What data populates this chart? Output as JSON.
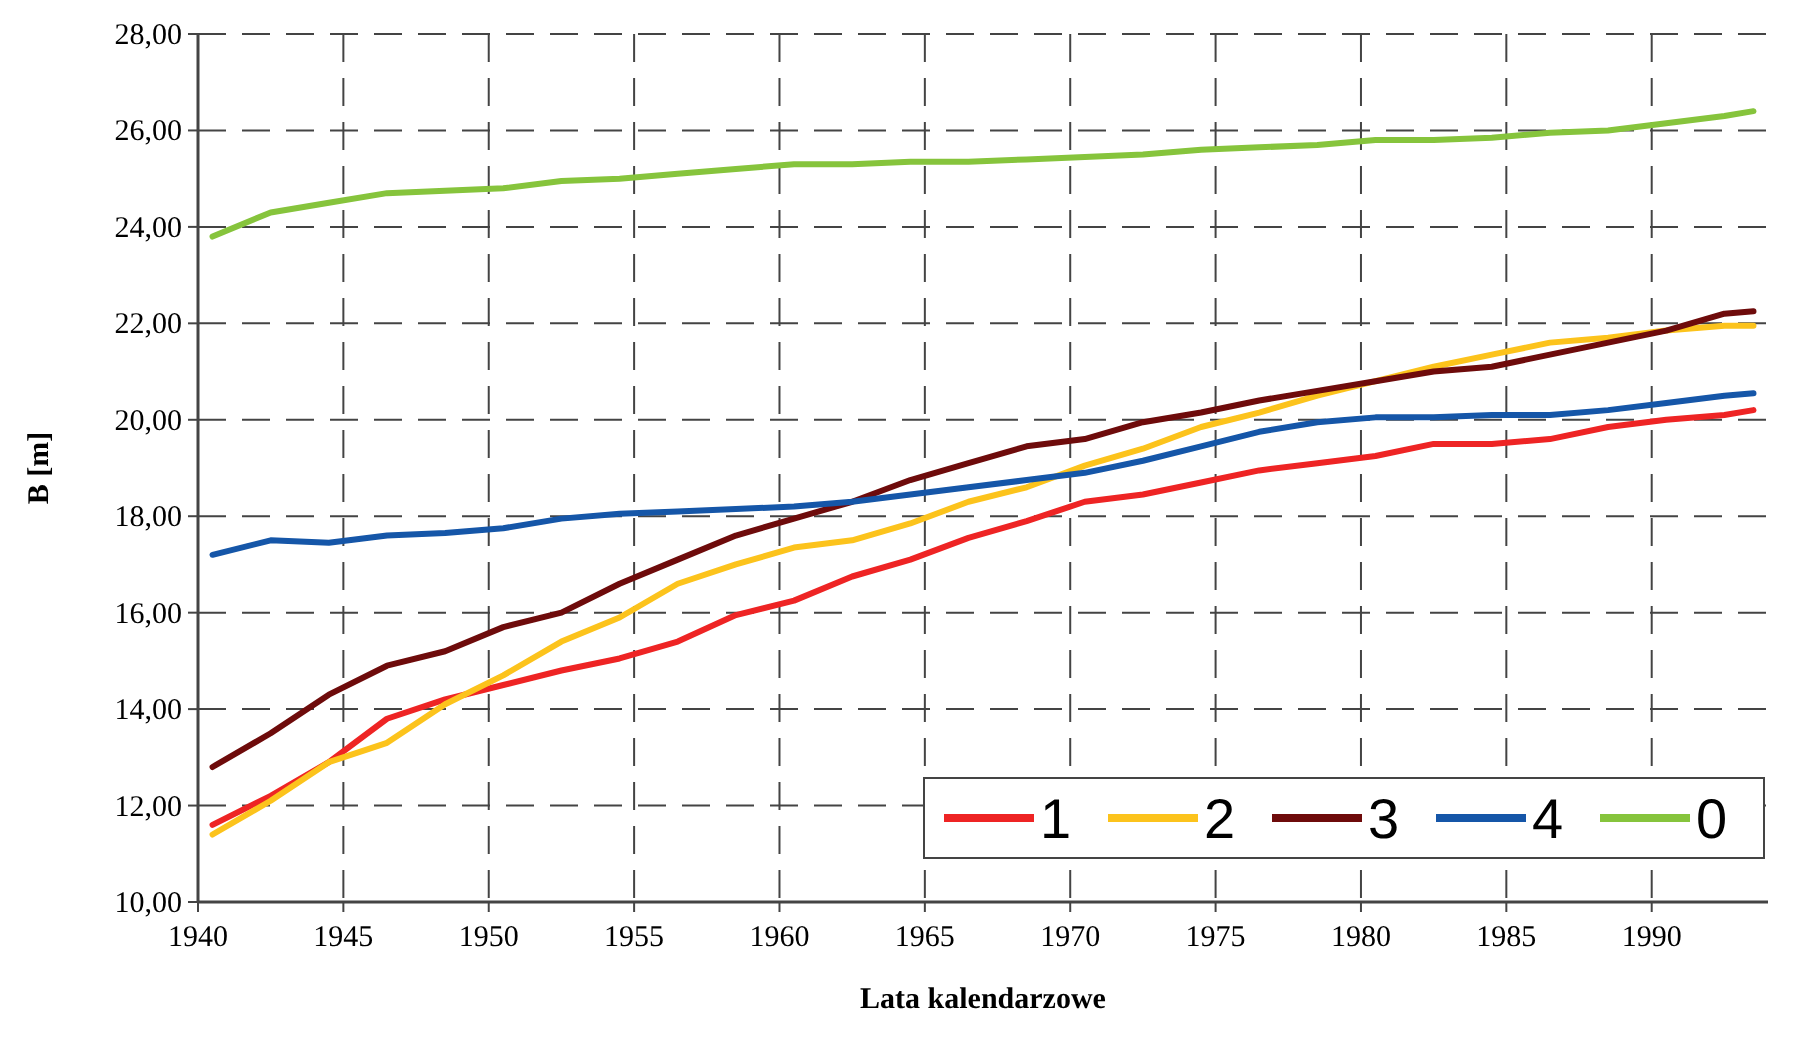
{
  "chart_data": {
    "type": "line",
    "xlabel": "Lata kalendarzowe",
    "ylabel": "B [m]",
    "x": [
      1940.5,
      1942.5,
      1944.5,
      1946.5,
      1948.5,
      1950.5,
      1952.5,
      1954.5,
      1956.5,
      1958.5,
      1960.5,
      1962.5,
      1964.5,
      1966.5,
      1968.5,
      1970.5,
      1972.5,
      1974.5,
      1976.5,
      1978.5,
      1980.5,
      1982.5,
      1984.5,
      1986.5,
      1988.5,
      1990.5,
      1992.5,
      1993.5
    ],
    "series": [
      {
        "name": "1",
        "color": "#ee2424",
        "values": [
          11.6,
          12.2,
          12.9,
          13.8,
          14.2,
          14.5,
          14.8,
          15.05,
          15.4,
          15.95,
          16.25,
          16.75,
          17.1,
          17.55,
          17.9,
          18.3,
          18.45,
          18.7,
          18.95,
          19.1,
          19.25,
          19.5,
          19.5,
          19.6,
          19.85,
          20.0,
          20.1,
          20.2
        ]
      },
      {
        "name": "2",
        "color": "#fcc31c",
        "values": [
          11.4,
          12.1,
          12.9,
          13.3,
          14.1,
          14.7,
          15.4,
          15.9,
          16.6,
          17.0,
          17.35,
          17.5,
          17.85,
          18.3,
          18.6,
          19.05,
          19.4,
          19.85,
          20.15,
          20.5,
          20.8,
          21.1,
          21.35,
          21.6,
          21.7,
          21.85,
          21.95,
          21.95
        ]
      },
      {
        "name": "3",
        "color": "#6e0b0b",
        "values": [
          12.8,
          13.5,
          14.3,
          14.9,
          15.2,
          15.7,
          16.0,
          16.6,
          17.1,
          17.6,
          17.95,
          18.3,
          18.75,
          19.1,
          19.45,
          19.6,
          19.95,
          20.15,
          20.4,
          20.6,
          20.8,
          21.0,
          21.1,
          21.35,
          21.6,
          21.85,
          22.2,
          22.25
        ]
      },
      {
        "name": "4",
        "color": "#1556a8",
        "values": [
          17.2,
          17.5,
          17.45,
          17.6,
          17.65,
          17.75,
          17.95,
          18.05,
          18.1,
          18.15,
          18.2,
          18.3,
          18.45,
          18.6,
          18.75,
          18.9,
          19.15,
          19.45,
          19.75,
          19.95,
          20.05,
          20.05,
          20.1,
          20.1,
          20.2,
          20.35,
          20.5,
          20.55
        ]
      },
      {
        "name": "0",
        "color": "#86c43c",
        "values": [
          23.8,
          24.3,
          24.5,
          24.7,
          24.75,
          24.8,
          24.95,
          25.0,
          25.1,
          25.2,
          25.3,
          25.3,
          25.35,
          25.35,
          25.4,
          25.45,
          25.5,
          25.6,
          25.65,
          25.7,
          25.8,
          25.8,
          25.85,
          25.95,
          26.0,
          26.15,
          26.3,
          26.4
        ]
      }
    ],
    "xlim": [
      1940,
      1994
    ],
    "xticks": [
      1940,
      1945,
      1950,
      1955,
      1960,
      1965,
      1970,
      1975,
      1980,
      1985,
      1990
    ],
    "ylim": [
      10,
      28
    ],
    "yticks": [
      {
        "value": 10,
        "label": "10,00"
      },
      {
        "value": 12,
        "label": "12,00"
      },
      {
        "value": 14,
        "label": "14,00"
      },
      {
        "value": 16,
        "label": "16,00"
      },
      {
        "value": 18,
        "label": "18,00"
      },
      {
        "value": 20,
        "label": "20,00"
      },
      {
        "value": 22,
        "label": "22,00"
      },
      {
        "value": 24,
        "label": "24,00"
      },
      {
        "value": 26,
        "label": "26,00"
      },
      {
        "value": 28,
        "label": "28,00"
      }
    ],
    "grid": true,
    "legend": "bottom right",
    "line_style": "solid",
    "marker": "none"
  }
}
